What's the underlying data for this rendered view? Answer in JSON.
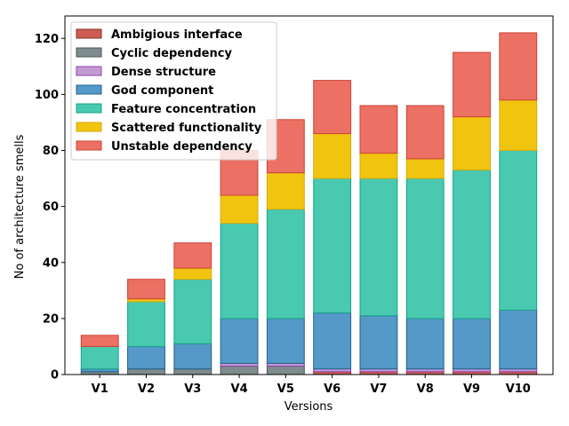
{
  "chart_data": {
    "type": "bar",
    "stacked": true,
    "title": "",
    "xlabel": "Versions",
    "ylabel": "No of architecture smells",
    "ylim": [
      0,
      128
    ],
    "yticks": [
      0,
      20,
      40,
      60,
      80,
      100,
      120
    ],
    "categories": [
      "V1",
      "V2",
      "V3",
      "V4",
      "V5",
      "V6",
      "V7",
      "V8",
      "V9",
      "V10"
    ],
    "legend_position": "top-left",
    "series": [
      {
        "name": "Ambigious interface",
        "fill": "#cd5c52",
        "stroke": "#8b2e26",
        "values": [
          0,
          0,
          0,
          0,
          0,
          1,
          1,
          1,
          1,
          1
        ]
      },
      {
        "name": "Cyclic dependency",
        "fill": "#7f8c8d",
        "stroke": "#4a5354",
        "values": [
          1,
          2,
          2,
          3,
          3,
          0,
          0,
          0,
          0,
          0
        ]
      },
      {
        "name": "Dense structure",
        "fill": "#c39bd3",
        "stroke": "#8e44ad",
        "values": [
          0,
          0,
          0,
          1,
          1,
          1,
          1,
          1,
          1,
          1
        ]
      },
      {
        "name": "God component",
        "fill": "#5499c7",
        "stroke": "#21618c",
        "values": [
          1,
          8,
          9,
          16,
          16,
          20,
          19,
          18,
          18,
          21
        ]
      },
      {
        "name": "Feature concentration",
        "fill": "#48c9b0",
        "stroke": "#17a589",
        "values": [
          8,
          16,
          23,
          34,
          39,
          48,
          49,
          50,
          53,
          57
        ]
      },
      {
        "name": "Scattered functionality",
        "fill": "#f1c40f",
        "stroke": "#d4ac0d",
        "values": [
          0,
          1,
          4,
          10,
          13,
          16,
          9,
          7,
          19,
          18
        ]
      },
      {
        "name": "Unstable dependency",
        "fill": "#ec7063",
        "stroke": "#cb4335",
        "values": [
          4,
          7,
          9,
          16,
          19,
          19,
          17,
          19,
          23,
          24
        ]
      }
    ]
  }
}
